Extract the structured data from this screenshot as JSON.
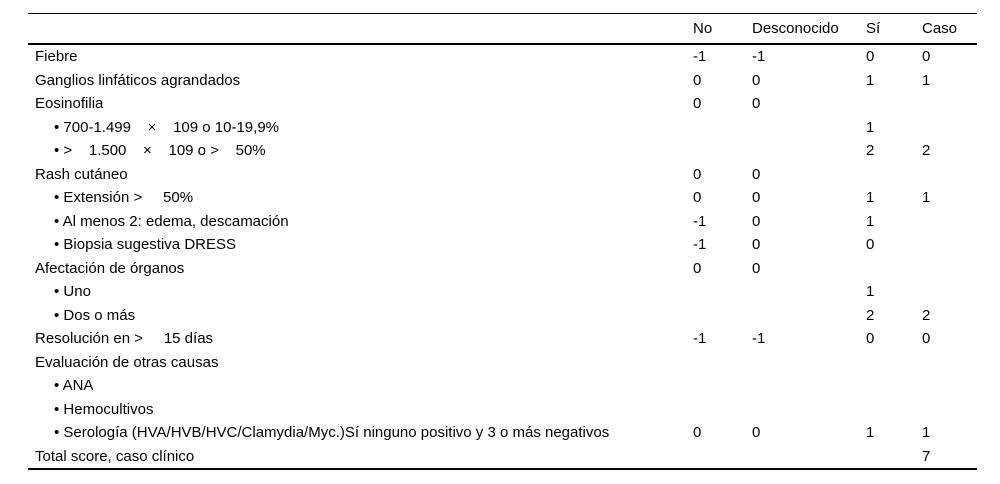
{
  "table": {
    "headers": {
      "label": "",
      "no": "No",
      "desconocido": "Desconocido",
      "si": "Sí",
      "caso": "Caso"
    },
    "rows": [
      {
        "label": "Fiebre",
        "indent": false,
        "no": "-1",
        "desconocido": "-1",
        "si": "0",
        "caso": "0"
      },
      {
        "label": "Ganglios linfáticos agrandados",
        "indent": false,
        "no": "0",
        "desconocido": "0",
        "si": "1",
        "caso": "1"
      },
      {
        "label": "Eosinofilia",
        "indent": false,
        "no": "0",
        "desconocido": "0",
        "si": "",
        "caso": ""
      },
      {
        "label": "• 700-1.499    ×    109 o 10-19,9%",
        "indent": true,
        "no": "",
        "desconocido": "",
        "si": "1",
        "caso": ""
      },
      {
        "label": "• >    1.500    ×    109 o >    50%",
        "indent": true,
        "no": "",
        "desconocido": "",
        "si": "2",
        "caso": "2"
      },
      {
        "label": "Rash cutáneo",
        "indent": false,
        "no": "0",
        "desconocido": "0",
        "si": "",
        "caso": ""
      },
      {
        "label": "• Extensión >     50%",
        "indent": true,
        "no": "0",
        "desconocido": "0",
        "si": "1",
        "caso": "1"
      },
      {
        "label": "• Al menos 2: edema, descamación",
        "indent": true,
        "no": "-1",
        "desconocido": "0",
        "si": "1",
        "caso": ""
      },
      {
        "label": "• Biopsia sugestiva DRESS",
        "indent": true,
        "no": "-1",
        "desconocido": "0",
        "si": "0",
        "caso": ""
      },
      {
        "label": "Afectación de órganos",
        "indent": false,
        "no": "0",
        "desconocido": "0",
        "si": "",
        "caso": ""
      },
      {
        "label": "• Uno",
        "indent": true,
        "no": "",
        "desconocido": "",
        "si": "1",
        "caso": ""
      },
      {
        "label": "• Dos o más",
        "indent": true,
        "no": "",
        "desconocido": "",
        "si": "2",
        "caso": "2"
      },
      {
        "label": "Resolución en >     15 días",
        "indent": false,
        "no": "-1",
        "desconocido": "-1",
        "si": "0",
        "caso": "0"
      },
      {
        "label": "Evaluación de otras causas",
        "indent": false,
        "no": "",
        "desconocido": "",
        "si": "",
        "caso": ""
      },
      {
        "label": "• ANA",
        "indent": true,
        "no": "",
        "desconocido": "",
        "si": "",
        "caso": ""
      },
      {
        "label": "• Hemocultivos",
        "indent": true,
        "no": "",
        "desconocido": "",
        "si": "",
        "caso": ""
      },
      {
        "label": "• Serología (HVA/HVB/HVC/Clamydia/Myc.)Sí ninguno positivo y 3 o más negativos",
        "indent": true,
        "no": "0",
        "desconocido": "0",
        "si": "1",
        "caso": "1"
      },
      {
        "label": "Total score, caso clínico",
        "indent": false,
        "no": "",
        "desconocido": "",
        "si": "",
        "caso": "7"
      }
    ],
    "text_color": "#000000",
    "background_color": "#ffffff"
  }
}
